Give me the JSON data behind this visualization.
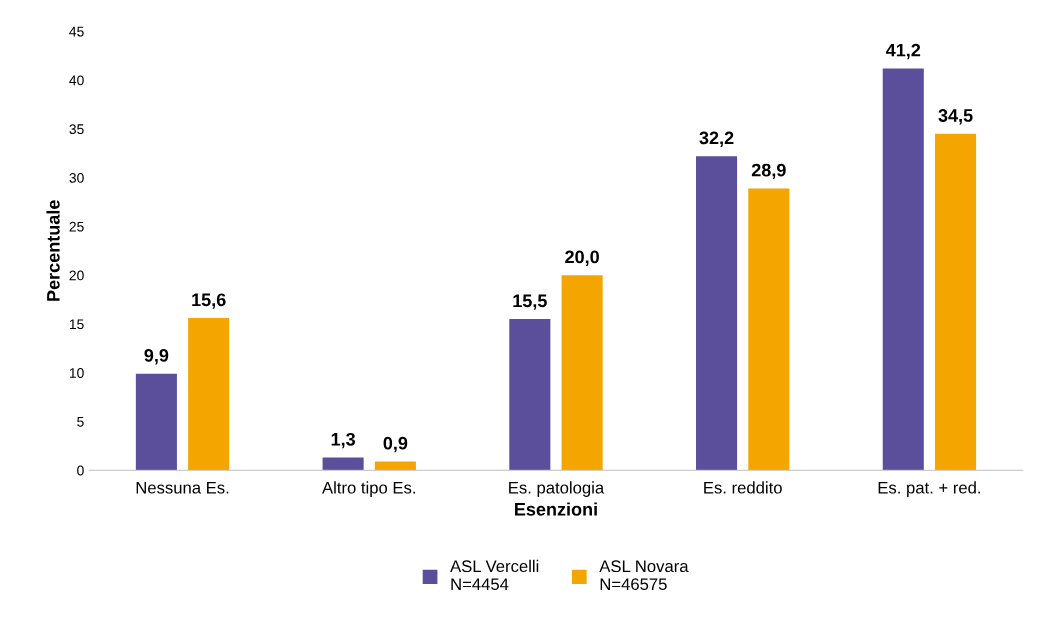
{
  "chart_data": {
    "type": "bar",
    "xlabel": "Esenzioni",
    "ylabel": "Percentuale",
    "categories": [
      "Nessuna Es.",
      "Altro tipo Es.",
      "Es. patologia",
      "Es. reddito",
      "Es. pat. + red."
    ],
    "series": [
      {
        "name": "ASL Vercelli\nN=4454",
        "color": "#5b4f9b",
        "values": [
          9.9,
          1.3,
          15.5,
          32.2,
          41.2
        ],
        "value_labels": [
          "9,9",
          "1,3",
          "15,5",
          "32,2",
          "41,2"
        ]
      },
      {
        "name": "ASL Novara\nN=46575",
        "color": "#f5a500",
        "values": [
          15.6,
          0.9,
          20.0,
          28.9,
          34.5
        ],
        "value_labels": [
          "15,6",
          "0,9",
          "20,0",
          "28,9",
          "34,5"
        ]
      }
    ],
    "ylim": [
      0,
      45
    ],
    "yticks": [
      0,
      5,
      10,
      15,
      20,
      25,
      30,
      35,
      40,
      45
    ],
    "grid": false,
    "legend": "bottom"
  }
}
